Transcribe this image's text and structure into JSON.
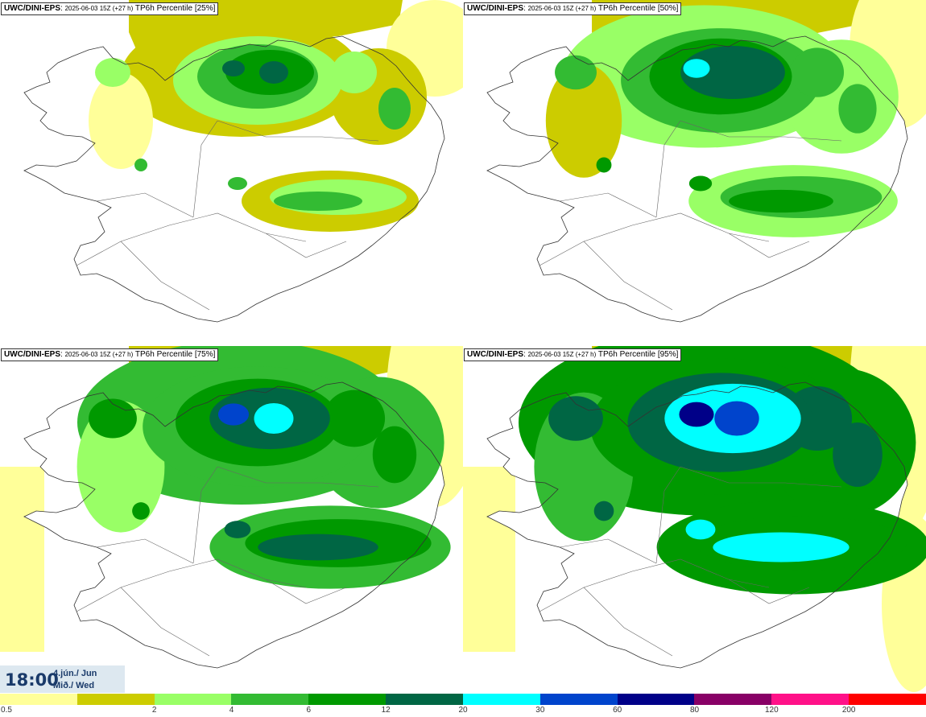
{
  "panels": [
    {
      "model": "UWC/DINI-EPS",
      "run": "2025-06-03 15Z (+27 h)",
      "label": "TP6h Percentile [25%]",
      "level": 0
    },
    {
      "model": "UWC/DINI-EPS",
      "run": "2025-06-03 15Z (+27 h)",
      "label": "TP6h Percentile [50%]",
      "level": 1
    },
    {
      "model": "UWC/DINI-EPS",
      "run": "2025-06-03 15Z (+27 h)",
      "label": "TP6h Percentile [75%]",
      "level": 2
    },
    {
      "model": "UWC/DINI-EPS",
      "run": "2025-06-03 15Z (+27 h)",
      "label": "TP6h Percentile [95%]",
      "level": 3
    }
  ],
  "time": {
    "hour": "18:00",
    "date": "4.jún./ Jun",
    "weekday": "Mið./ Wed"
  },
  "legend": {
    "ticks": [
      "0.5",
      "2",
      "4",
      "6",
      "12",
      "20",
      "30",
      "60",
      "80",
      "120",
      "200"
    ],
    "colors": [
      "#ffff99",
      "#cccc00",
      "#99ff66",
      "#33bb33",
      "#009900",
      "#006644",
      "#00ffff",
      "#0044cc",
      "#000088",
      "#880066",
      "#ff1188",
      "#ff0000"
    ]
  }
}
